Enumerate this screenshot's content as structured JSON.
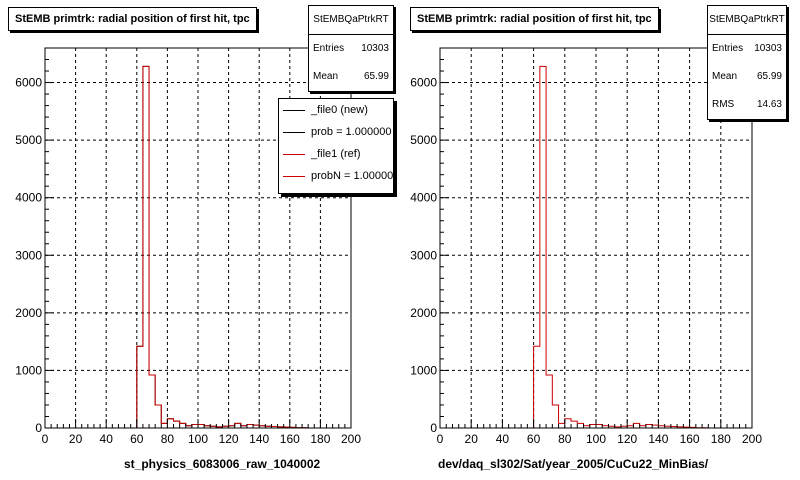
{
  "pads": [
    {
      "title": "StEMB primtrk: radial position of first hit, tpc",
      "stats": {
        "name": "StEMBQaPtrkRT",
        "rows": [
          {
            "label": "Entries",
            "value": "10303"
          },
          {
            "label": "Mean",
            "value": "65.99"
          }
        ]
      },
      "legend": [
        {
          "label": "_file0 (new)",
          "color": "#000000"
        },
        {
          "label": "prob = 1.000000",
          "color": "#000000"
        },
        {
          "label": "_file1 (ref)",
          "color": "#cc0000"
        },
        {
          "label": "probN = 1.000000",
          "color": "#cc0000"
        }
      ],
      "xtitle": "st_physics_6083006_raw_1040002"
    },
    {
      "title": "StEMB primtrk: radial position of first hit, tpc",
      "stats": {
        "name": "StEMBQaPtrkRT",
        "rows": [
          {
            "label": "Entries",
            "value": "10303"
          },
          {
            "label": "Mean",
            "value": "65.99"
          },
          {
            "label": "RMS",
            "value": "14.63"
          }
        ]
      },
      "legend": [],
      "xtitle": "dev/daq_sl302/Sat/year_2005/CuCu22_MinBias/"
    }
  ],
  "chart_data": [
    {
      "type": "bar",
      "title": "StEMB primtrk: radial position of first hit, tpc",
      "xlabel": "st_physics_6083006_raw_1040002",
      "ylabel": "",
      "xlim": [
        0,
        200
      ],
      "ylim": [
        0,
        6600
      ],
      "xticks": [
        0,
        20,
        40,
        60,
        80,
        100,
        120,
        140,
        160,
        180,
        200
      ],
      "yticks": [
        0,
        1000,
        2000,
        3000,
        4000,
        5000,
        6000
      ],
      "grid": true,
      "bin_width": 4,
      "bin_starts": [
        0,
        4,
        8,
        12,
        16,
        20,
        24,
        28,
        32,
        36,
        40,
        44,
        48,
        52,
        56,
        60,
        64,
        68,
        72,
        76,
        80,
        84,
        88,
        92,
        96,
        100,
        104,
        108,
        112,
        116,
        120,
        124,
        128,
        132,
        136,
        140,
        144,
        148,
        152,
        156,
        160,
        164,
        168,
        172,
        176,
        180,
        184,
        188,
        192,
        196
      ],
      "series": [
        {
          "name": "_file0 (new)",
          "color": "#000000",
          "values": [
            0,
            0,
            0,
            0,
            0,
            0,
            0,
            0,
            0,
            0,
            0,
            0,
            0,
            0,
            0,
            1420,
            6280,
            920,
            400,
            80,
            160,
            120,
            80,
            40,
            60,
            60,
            40,
            30,
            20,
            30,
            40,
            80,
            40,
            60,
            50,
            40,
            30,
            25,
            20,
            15,
            10,
            5,
            5,
            0,
            0,
            0,
            0,
            0,
            0,
            0
          ]
        },
        {
          "name": "_file1 (ref)",
          "color": "#cc0000",
          "values": [
            0,
            0,
            0,
            0,
            0,
            0,
            0,
            0,
            0,
            0,
            0,
            0,
            0,
            0,
            0,
            1420,
            6280,
            920,
            400,
            80,
            160,
            120,
            80,
            40,
            60,
            60,
            40,
            30,
            20,
            30,
            40,
            80,
            40,
            60,
            50,
            40,
            30,
            25,
            20,
            15,
            10,
            5,
            5,
            0,
            0,
            0,
            0,
            0,
            0,
            0
          ]
        }
      ]
    },
    {
      "type": "bar",
      "title": "StEMB primtrk: radial position of first hit, tpc",
      "xlabel": "dev/daq_sl302/Sat/year_2005/CuCu22_MinBias/",
      "ylabel": "",
      "xlim": [
        0,
        200
      ],
      "ylim": [
        0,
        6600
      ],
      "xticks": [
        0,
        20,
        40,
        60,
        80,
        100,
        120,
        140,
        160,
        180,
        200
      ],
      "yticks": [
        0,
        1000,
        2000,
        3000,
        4000,
        5000,
        6000
      ],
      "grid": true,
      "bin_width": 4,
      "bin_starts": [
        0,
        4,
        8,
        12,
        16,
        20,
        24,
        28,
        32,
        36,
        40,
        44,
        48,
        52,
        56,
        60,
        64,
        68,
        72,
        76,
        80,
        84,
        88,
        92,
        96,
        100,
        104,
        108,
        112,
        116,
        120,
        124,
        128,
        132,
        136,
        140,
        144,
        148,
        152,
        156,
        160,
        164,
        168,
        172,
        176,
        180,
        184,
        188,
        192,
        196
      ],
      "series": [
        {
          "name": "",
          "color": "#cc0000",
          "values": [
            0,
            0,
            0,
            0,
            0,
            0,
            0,
            0,
            0,
            0,
            0,
            0,
            0,
            0,
            0,
            1420,
            6280,
            920,
            400,
            80,
            160,
            120,
            80,
            40,
            60,
            60,
            40,
            30,
            20,
            30,
            40,
            80,
            40,
            60,
            50,
            40,
            30,
            25,
            20,
            15,
            10,
            5,
            5,
            0,
            0,
            0,
            0,
            0,
            0,
            0
          ]
        }
      ]
    }
  ]
}
